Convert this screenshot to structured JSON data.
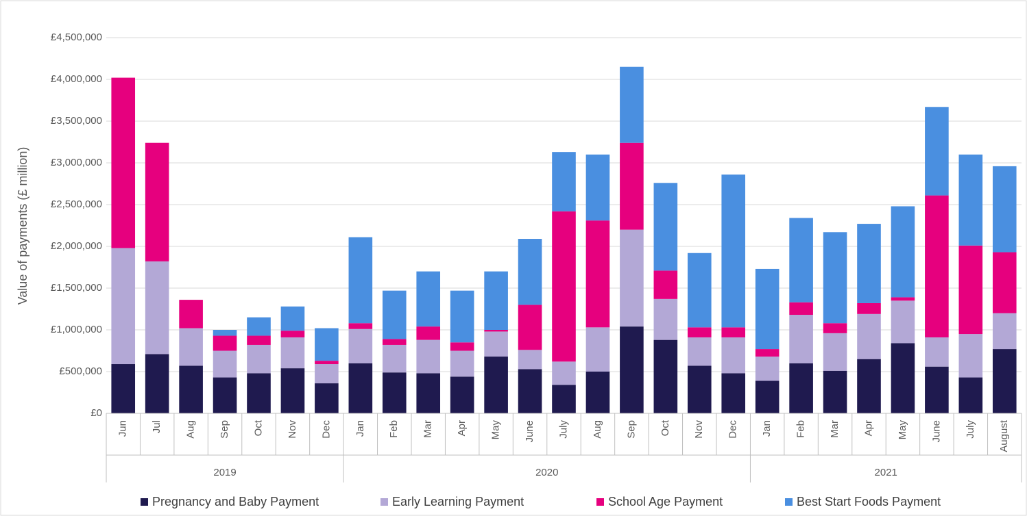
{
  "chart_data": {
    "type": "stacked_bar",
    "y_axis_label": "Value of payments (£ million)",
    "category_groups": [
      {
        "label": "2019",
        "categories": [
          "Jun",
          "Jul",
          "Aug",
          "Sep",
          "Oct",
          "Nov",
          "Dec"
        ]
      },
      {
        "label": "2020",
        "categories": [
          "Jan",
          "Feb",
          "Mar",
          "Apr",
          "May",
          "June",
          "July",
          "Aug",
          "Sep",
          "Oct",
          "Nov",
          "Dec"
        ]
      },
      {
        "label": "2021",
        "categories": [
          "Jan",
          "Feb",
          "Mar",
          "Apr",
          "May",
          "June",
          "July",
          "August"
        ]
      }
    ],
    "series": [
      {
        "name": "Pregnancy and Baby Payment",
        "color": "#1f1a4f",
        "values": [
          590000,
          710000,
          570000,
          430000,
          480000,
          540000,
          360000,
          600000,
          490000,
          480000,
          440000,
          680000,
          530000,
          340000,
          500000,
          1040000,
          880000,
          570000,
          480000,
          390000,
          600000,
          510000,
          650000,
          840000,
          560000,
          430000,
          770000
        ]
      },
      {
        "name": "Early Learning Payment",
        "color": "#b3a8d6",
        "values": [
          1390000,
          1110000,
          450000,
          320000,
          340000,
          370000,
          230000,
          410000,
          330000,
          400000,
          310000,
          300000,
          230000,
          280000,
          530000,
          1160000,
          490000,
          340000,
          430000,
          290000,
          580000,
          450000,
          540000,
          510000,
          350000,
          520000,
          430000
        ]
      },
      {
        "name": "School Age Payment",
        "color": "#e6007e",
        "values": [
          2040000,
          1420000,
          340000,
          180000,
          110000,
          80000,
          40000,
          70000,
          70000,
          160000,
          100000,
          20000,
          540000,
          1800000,
          1280000,
          1040000,
          340000,
          120000,
          120000,
          90000,
          150000,
          120000,
          130000,
          40000,
          1700000,
          1060000,
          730000
        ]
      },
      {
        "name": "Best Start Foods Payment",
        "color": "#4a8fe0",
        "values": [
          0,
          0,
          0,
          70000,
          220000,
          290000,
          390000,
          1030000,
          580000,
          660000,
          620000,
          700000,
          790000,
          710000,
          790000,
          910000,
          1050000,
          890000,
          1830000,
          960000,
          1010000,
          1090000,
          950000,
          1090000,
          1060000,
          1090000,
          1030000
        ]
      }
    ],
    "ylim": [
      0,
      4500000
    ],
    "yticks": [
      {
        "value": 0,
        "label": "£0"
      },
      {
        "value": 500000,
        "label": "£500,000"
      },
      {
        "value": 1000000,
        "label": "£1,000,000"
      },
      {
        "value": 1500000,
        "label": "£1,500,000"
      },
      {
        "value": 2000000,
        "label": "£2,000,000"
      },
      {
        "value": 2500000,
        "label": "£2,500,000"
      },
      {
        "value": 3000000,
        "label": "£3,000,000"
      },
      {
        "value": 3500000,
        "label": "£3,500,000"
      },
      {
        "value": 4000000,
        "label": "£4,000,000"
      },
      {
        "value": 4500000,
        "label": "£4,500,000"
      }
    ],
    "grid": true,
    "legend": "bottom"
  }
}
